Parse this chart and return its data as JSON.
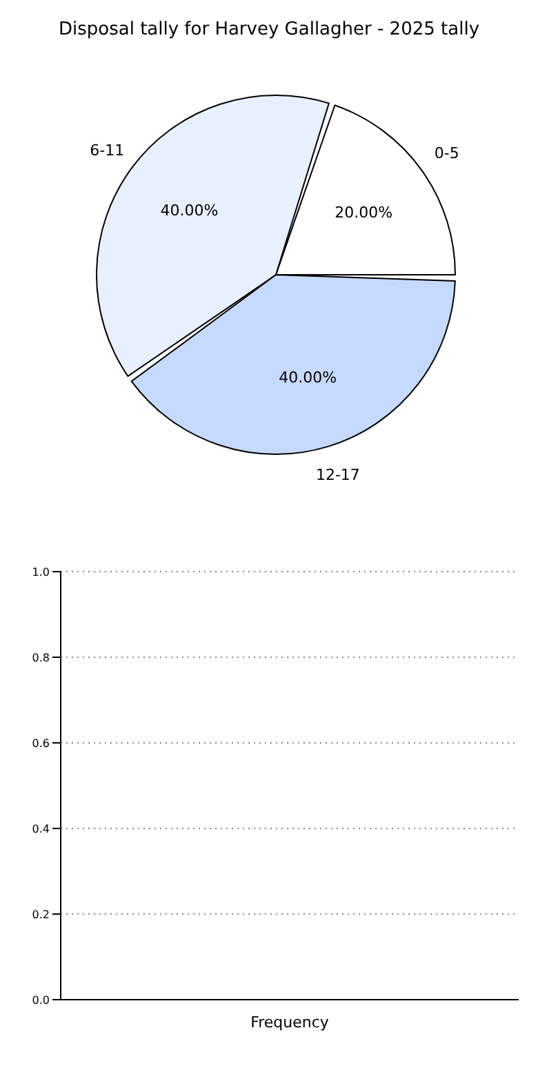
{
  "chart_data": [
    {
      "type": "pie",
      "title": "Disposal tally for Harvey Gallagher - 2025 tally",
      "categories": [
        "0-5",
        "6-11",
        "12-17"
      ],
      "values": [
        20,
        40,
        40
      ],
      "colors": [
        "#ffffff",
        "#e8f0ff",
        "#c6d9ff"
      ],
      "value_labels": [
        "20.00%",
        "40.00%",
        "40.00%"
      ]
    },
    {
      "type": "bar",
      "categories": [
        null
      ],
      "values": [
        null
      ],
      "xlabel": "Frequency",
      "ylim": [
        0,
        1
      ],
      "yticks": [
        {
          "value": 0,
          "label": "0.0"
        },
        {
          "value": 0.2,
          "label": "0.2"
        },
        {
          "value": 0.4,
          "label": "0.4"
        },
        {
          "value": 0.6,
          "label": "0.6"
        },
        {
          "value": 0.8,
          "label": "0.8"
        },
        {
          "value": 1,
          "label": "1.0"
        }
      ],
      "grid": "y",
      "tick_labels": "y"
    }
  ]
}
